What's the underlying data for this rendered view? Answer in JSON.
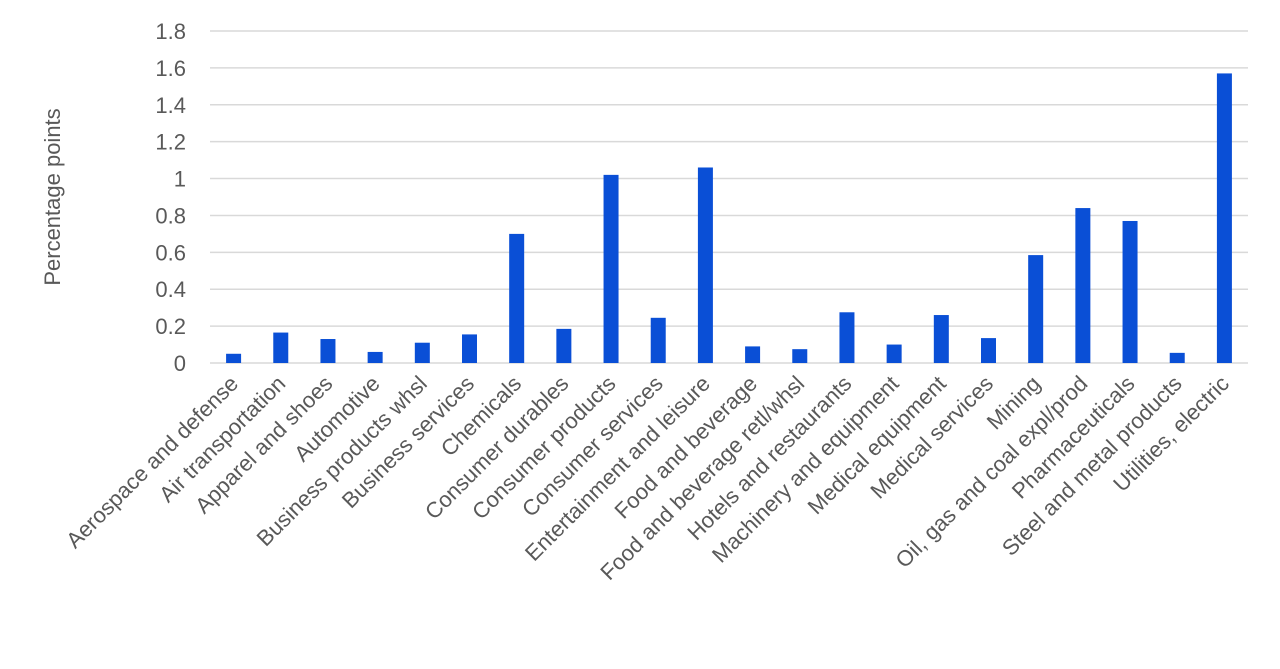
{
  "chart_data": {
    "type": "bar",
    "title": "",
    "xlabel": "",
    "ylabel": "Percentage points",
    "ylim": [
      0,
      1.8
    ],
    "yticks": [
      "0",
      "0.2",
      "0.4",
      "0.6",
      "0.8",
      "1",
      "1.2",
      "1.4",
      "1.6",
      "1.8"
    ],
    "grid": true,
    "legend": "none",
    "bar_color": "#0a4fd6",
    "grid_color": "#d9d9d9",
    "categories": [
      "Aerospace and defense",
      "Air transportation",
      "Apparel and shoes",
      "Automotive",
      "Business products whsl",
      "Business services",
      "Chemicals",
      "Consumer durables",
      "Consumer products",
      "Consumer services",
      "Entertainment and leisure",
      "Food and beverage",
      "Food and beverage retl/whsl",
      "Hotels and restaurants",
      "Machinery and equipment",
      "Medical equipment",
      "Medical services",
      "Mining",
      "Oil, gas and coal expl/prod",
      "Pharmaceuticals",
      "Steel and metal products",
      "Utilities, electric"
    ],
    "values": [
      0.05,
      0.165,
      0.13,
      0.06,
      0.11,
      0.155,
      0.7,
      0.185,
      1.02,
      0.245,
      1.06,
      0.09,
      0.075,
      0.275,
      0.1,
      0.26,
      0.135,
      0.585,
      0.84,
      0.77,
      0.055,
      1.57
    ]
  }
}
